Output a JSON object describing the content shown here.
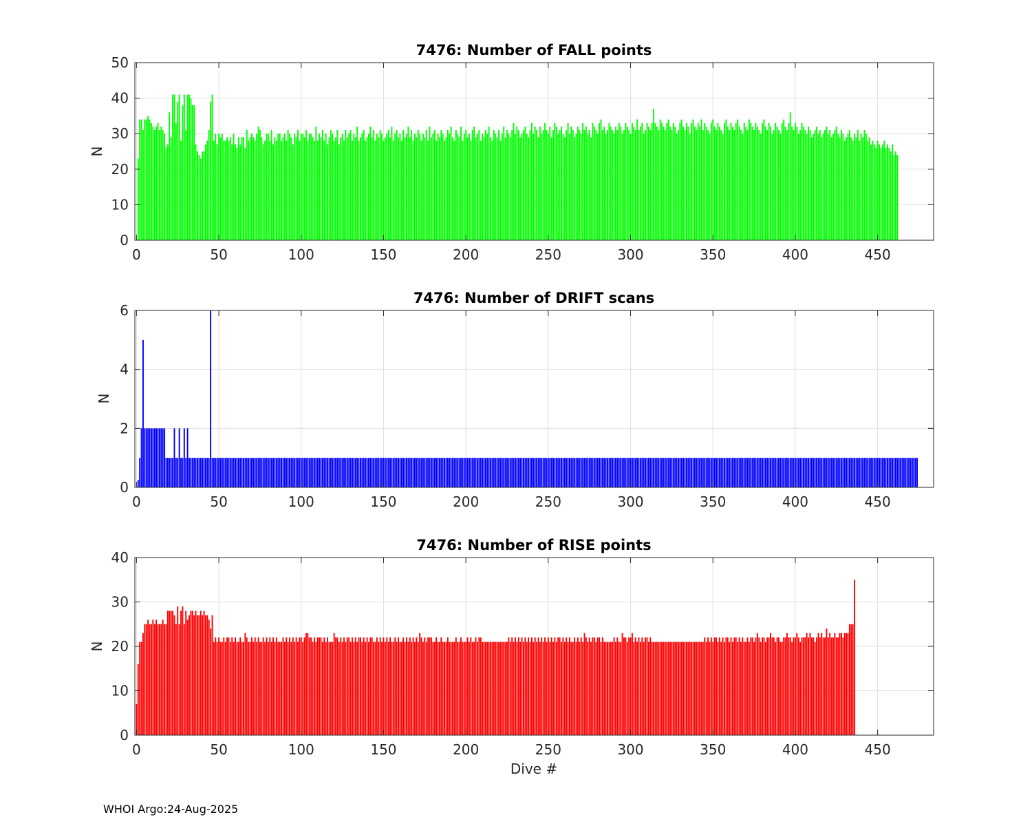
{
  "footer": {
    "credit": "WHOI Argo:",
    "date": "24-Aug-2025"
  },
  "chart_data": [
    {
      "type": "bar",
      "title": "7476: Number of FALL points",
      "xlabel": "",
      "ylabel": "N",
      "color": "#00ff00",
      "xlim": [
        -1,
        484
      ],
      "ylim": [
        0,
        50
      ],
      "xticks": [
        0,
        50,
        100,
        150,
        200,
        250,
        300,
        350,
        400,
        450
      ],
      "yticks": [
        0,
        10,
        20,
        30,
        40,
        50
      ],
      "grid": true,
      "x_start": 1,
      "values": [
        23,
        34,
        34,
        31,
        34,
        34,
        35,
        34,
        33,
        32,
        31,
        32,
        33,
        31,
        32,
        31,
        30,
        26,
        27,
        36,
        29,
        41,
        41,
        33,
        39,
        41,
        28,
        38,
        41,
        31,
        41,
        41,
        40,
        38,
        38,
        27,
        25,
        24,
        23,
        25,
        25,
        27,
        28,
        31,
        39,
        41,
        28,
        30,
        27,
        30,
        29,
        30,
        28,
        28,
        29,
        28,
        29,
        27,
        30,
        27,
        26,
        29,
        27,
        29,
        29,
        26,
        31,
        28,
        29,
        30,
        29,
        28,
        30,
        32,
        31,
        29,
        27,
        28,
        30,
        30,
        28,
        31,
        27,
        29,
        28,
        30,
        30,
        28,
        29,
        30,
        28,
        31,
        30,
        29,
        27,
        30,
        29,
        31,
        28,
        30,
        30,
        29,
        31,
        28,
        30,
        30,
        29,
        28,
        32,
        28,
        30,
        29,
        31,
        28,
        30,
        27,
        29,
        31,
        30,
        28,
        29,
        31,
        27,
        29,
        30,
        28,
        31,
        29,
        30,
        31,
        28,
        30,
        29,
        32,
        28,
        29,
        30,
        31,
        28,
        29,
        30,
        32,
        29,
        31,
        28,
        30,
        29,
        31,
        30,
        28,
        29,
        30,
        31,
        29,
        32,
        28,
        30,
        31,
        29,
        30,
        28,
        31,
        29,
        30,
        32,
        29,
        31,
        28,
        30,
        29,
        31,
        30,
        28,
        30,
        29,
        31,
        28,
        32,
        29,
        30,
        31,
        28,
        30,
        29,
        31,
        30,
        28,
        29,
        31,
        30,
        32,
        29,
        28,
        31,
        30,
        29,
        32,
        28,
        30,
        31,
        29,
        30,
        28,
        31,
        32,
        29,
        30,
        31,
        28,
        30,
        29,
        31,
        30,
        32,
        29,
        28,
        31,
        30,
        29,
        31,
        28,
        30,
        32,
        29,
        31,
        30,
        29,
        31,
        33,
        30,
        32,
        31,
        29,
        30,
        31,
        32,
        30,
        29,
        31,
        33,
        30,
        32,
        31,
        29,
        32,
        30,
        31,
        33,
        31,
        30,
        32,
        29,
        31,
        33,
        32,
        30,
        31,
        32,
        30,
        29,
        31,
        33,
        30,
        32,
        31,
        29,
        30,
        32,
        31,
        30,
        33,
        31,
        32,
        30,
        31,
        29,
        33,
        32,
        31,
        30,
        33,
        34,
        31,
        32,
        30,
        31,
        33,
        32,
        31,
        30,
        32,
        31,
        33,
        32,
        30,
        31,
        33,
        32,
        31,
        30,
        33,
        32,
        31,
        34,
        31,
        32,
        33,
        30,
        31,
        33,
        32,
        31,
        33,
        37,
        33,
        32,
        31,
        34,
        33,
        32,
        31,
        33,
        34,
        32,
        31,
        33,
        32,
        30,
        31,
        33,
        34,
        32,
        31,
        33,
        32,
        30,
        33,
        34,
        32,
        31,
        33,
        32,
        34,
        31,
        33,
        32,
        31,
        30,
        33,
        34,
        32,
        31,
        33,
        32,
        31,
        30,
        33,
        34,
        32,
        31,
        33,
        32,
        31,
        33,
        34,
        32,
        31,
        30,
        33,
        32,
        31,
        34,
        33,
        32,
        31,
        33,
        32,
        31,
        30,
        33,
        34,
        32,
        31,
        33,
        32,
        30,
        31,
        33,
        32,
        31,
        30,
        33,
        34,
        32,
        31,
        33,
        36,
        32,
        31,
        33,
        32,
        30,
        31,
        33,
        32,
        31,
        30,
        32,
        31,
        29,
        30,
        31,
        32,
        30,
        31,
        29,
        30,
        31,
        32,
        30,
        31,
        29,
        30,
        31,
        32,
        30,
        29,
        31,
        30,
        28,
        29,
        30,
        31,
        29,
        28,
        30,
        29,
        31,
        28,
        30,
        29,
        31,
        30,
        28,
        29,
        27,
        28,
        27,
        26,
        28,
        27,
        26,
        27,
        28,
        26,
        27,
        26,
        25,
        27,
        24,
        25,
        24
      ]
    },
    {
      "type": "bar",
      "title": "7476: Number of DRIFT scans",
      "xlabel": "",
      "ylabel": "N",
      "color": "#0000ff",
      "xlim": [
        -1,
        484
      ],
      "ylim": [
        0,
        6
      ],
      "xticks": [
        0,
        50,
        100,
        150,
        200,
        250,
        300,
        350,
        400,
        450
      ],
      "yticks": [
        0,
        2,
        4,
        6
      ],
      "grid": true,
      "x_start": 1,
      "values": [
        0.25,
        1,
        2,
        5,
        2,
        2,
        2,
        2,
        2,
        2,
        2,
        2,
        2,
        2,
        2,
        2,
        2,
        1,
        1,
        1,
        1,
        1,
        2,
        1,
        1,
        2,
        1,
        1,
        2,
        1,
        2,
        1,
        1,
        1,
        1,
        1,
        1,
        1,
        1,
        1,
        1,
        1,
        1,
        1,
        6,
        1,
        1,
        1,
        1,
        1,
        1,
        1,
        1,
        1,
        1,
        1,
        1,
        1,
        1,
        1,
        1,
        1,
        1,
        1,
        1,
        1,
        1,
        1,
        1,
        1,
        1,
        1,
        1,
        1,
        1,
        1,
        1,
        1,
        1,
        1,
        1,
        1,
        1,
        1,
        1,
        1,
        1,
        1,
        1,
        1,
        1,
        1,
        1,
        1,
        1,
        1,
        1,
        1,
        1,
        1,
        1,
        1,
        1,
        1,
        1,
        1,
        1,
        1,
        1,
        1,
        1,
        1,
        1,
        1,
        1,
        1,
        1,
        1,
        1,
        1,
        1,
        1,
        1,
        1,
        1,
        1,
        1,
        1,
        1,
        1,
        1,
        1,
        1,
        1,
        1,
        1,
        1,
        1,
        1,
        1,
        1,
        1,
        1,
        1,
        1,
        1,
        1,
        1,
        1,
        1,
        1,
        1,
        1,
        1,
        1,
        1,
        1,
        1,
        1,
        1,
        1,
        1,
        1,
        1,
        1,
        1,
        1,
        1,
        1,
        1,
        1,
        1,
        1,
        1,
        1,
        1,
        1,
        1,
        1,
        1,
        1,
        1,
        1,
        1,
        1,
        1,
        1,
        1,
        1,
        1,
        1,
        1,
        1,
        1,
        1,
        1,
        1,
        1,
        1,
        1,
        1,
        1,
        1,
        1,
        1,
        1,
        1,
        1,
        1,
        1,
        1,
        1,
        1,
        1,
        1,
        1,
        1,
        1,
        1,
        1,
        1,
        1,
        1,
        1,
        1,
        1,
        1,
        1,
        1,
        1,
        1,
        1,
        1,
        1,
        1,
        1,
        1,
        1,
        1,
        1,
        1,
        1,
        1,
        1,
        1,
        1,
        1,
        1,
        1,
        1,
        1,
        1,
        1,
        1,
        1,
        1,
        1,
        1,
        1,
        1,
        1,
        1,
        1,
        1,
        1,
        1,
        1,
        1,
        1,
        1,
        1,
        1,
        1,
        1,
        1,
        1,
        1,
        1,
        1,
        1,
        1,
        1,
        1,
        1,
        1,
        1,
        1,
        1,
        1,
        1,
        1,
        1,
        1,
        1,
        1,
        1,
        1,
        1,
        1,
        1,
        1,
        1,
        1,
        1,
        1,
        1,
        1,
        1,
        1,
        1,
        1,
        1,
        1,
        1,
        1,
        1,
        1,
        1,
        1,
        1,
        1,
        1,
        1,
        1,
        1,
        1,
        1,
        1,
        1,
        1,
        1,
        1,
        1,
        1,
        1,
        1,
        1,
        1,
        1,
        1,
        1,
        1,
        1,
        1,
        1,
        1,
        1,
        1,
        1,
        1,
        1,
        1,
        1,
        1,
        1,
        1,
        1,
        1,
        1,
        1,
        1,
        1,
        1,
        1,
        1,
        1,
        1,
        1,
        1,
        1,
        1,
        1,
        1,
        1,
        1,
        1,
        1,
        1,
        1,
        1,
        1,
        1,
        1,
        1,
        1,
        1,
        1,
        1,
        1,
        1,
        1,
        1,
        1,
        1,
        1,
        1,
        1,
        1,
        1,
        1,
        1,
        1,
        1,
        1,
        1,
        1,
        1,
        1,
        1,
        1,
        1,
        1,
        1,
        1,
        1,
        1,
        1,
        1,
        1,
        1,
        1,
        1,
        1,
        1,
        1,
        1,
        1,
        1,
        1,
        1,
        1,
        1,
        1,
        1,
        1,
        1,
        1,
        1,
        1,
        1,
        1,
        1,
        1,
        1,
        1,
        1,
        1,
        1,
        1,
        1,
        1,
        1,
        1,
        1,
        1,
        1,
        1,
        1,
        1,
        1,
        1,
        1,
        1,
        1,
        1,
        1,
        1,
        1,
        1,
        1,
        1,
        1,
        1,
        1
      ]
    },
    {
      "type": "bar",
      "title": "7476: Number of RISE points",
      "xlabel": "Dive #",
      "ylabel": "N",
      "color": "#ff0000",
      "xlim": [
        -1,
        484
      ],
      "ylim": [
        0,
        40
      ],
      "xticks": [
        0,
        50,
        100,
        150,
        200,
        250,
        300,
        350,
        400,
        450
      ],
      "yticks": [
        0,
        10,
        20,
        30,
        40
      ],
      "grid": true,
      "x_start": 0,
      "values": [
        7,
        16,
        21,
        21,
        23,
        25,
        25,
        26,
        25,
        25,
        26,
        25,
        26,
        25,
        25,
        25,
        26,
        25,
        25,
        28,
        28,
        28,
        28,
        27,
        25,
        29,
        25,
        28,
        29,
        25,
        28,
        26,
        27,
        28,
        28,
        27,
        28,
        27,
        27,
        28,
        27,
        28,
        27,
        27,
        26,
        24,
        27,
        21,
        22,
        21,
        22,
        21,
        21,
        22,
        21,
        22,
        22,
        21,
        22,
        21,
        22,
        21,
        21,
        22,
        21,
        21,
        23,
        22,
        21,
        21,
        22,
        21,
        22,
        21,
        22,
        21,
        21,
        22,
        21,
        22,
        21,
        22,
        21,
        22,
        21,
        22,
        21,
        21,
        21,
        22,
        21,
        22,
        21,
        22,
        21,
        22,
        21,
        22,
        21,
        22,
        22,
        21,
        22,
        23,
        23,
        22,
        22,
        21,
        22,
        21,
        22,
        22,
        22,
        21,
        22,
        21,
        22,
        21,
        21,
        21,
        23,
        22,
        22,
        21,
        22,
        21,
        22,
        21,
        22,
        22,
        21,
        22,
        21,
        22,
        21,
        22,
        22,
        21,
        22,
        21,
        22,
        21,
        22,
        22,
        21,
        21,
        22,
        21,
        22,
        21,
        22,
        21,
        22,
        21,
        22,
        21,
        21,
        22,
        21,
        22,
        21,
        21,
        22,
        21,
        22,
        21,
        22,
        21,
        22,
        21,
        22,
        21,
        23,
        22,
        21,
        22,
        21,
        22,
        22,
        22,
        21,
        21,
        22,
        21,
        21,
        22,
        21,
        21,
        21,
        22,
        21,
        21,
        21,
        21,
        22,
        21,
        21,
        22,
        21,
        21,
        21,
        22,
        21,
        22,
        21,
        21,
        22,
        21,
        22,
        22,
        21,
        21,
        21,
        21,
        21,
        21,
        21,
        21,
        21,
        21,
        21,
        21,
        21,
        21,
        21,
        21,
        22,
        21,
        22,
        21,
        22,
        21,
        22,
        21,
        22,
        21,
        22,
        21,
        22,
        21,
        22,
        21,
        22,
        21,
        22,
        21,
        22,
        21,
        22,
        21,
        22,
        21,
        22,
        21,
        22,
        21,
        22,
        22,
        21,
        22,
        21,
        22,
        21,
        22,
        21,
        21,
        22,
        21,
        22,
        21,
        22,
        21,
        23,
        22,
        21,
        22,
        21,
        22,
        22,
        21,
        22,
        22,
        21,
        22,
        21,
        21,
        21,
        21,
        21,
        21,
        22,
        21,
        22,
        21,
        21,
        23,
        22,
        22,
        21,
        22,
        22,
        23,
        21,
        22,
        21,
        22,
        21,
        22,
        21,
        22,
        22,
        21,
        22,
        21,
        21,
        21,
        21,
        21,
        21,
        21,
        21,
        21,
        21,
        21,
        21,
        21,
        21,
        21,
        21,
        21,
        21,
        21,
        21,
        21,
        21,
        21,
        21,
        21,
        21,
        21,
        21,
        21,
        21,
        21,
        21,
        22,
        21,
        22,
        21,
        22,
        21,
        22,
        22,
        21,
        22,
        21,
        22,
        21,
        22,
        22,
        21,
        22,
        21,
        22,
        22,
        21,
        22,
        21,
        22,
        21,
        21,
        22,
        21,
        22,
        22,
        21,
        22,
        23,
        22,
        21,
        22,
        22,
        21,
        22,
        22,
        23,
        22,
        22,
        21,
        22,
        22,
        21,
        21,
        22,
        22,
        23,
        22,
        22,
        21,
        22,
        22,
        23,
        22,
        21,
        22,
        22,
        22,
        23,
        22,
        23,
        22,
        22,
        21,
        22,
        23,
        22,
        23,
        22,
        22,
        24,
        22,
        23,
        22,
        22,
        23,
        22,
        22,
        23,
        23,
        22,
        23,
        23,
        23,
        25,
        25,
        25,
        35
      ]
    }
  ]
}
